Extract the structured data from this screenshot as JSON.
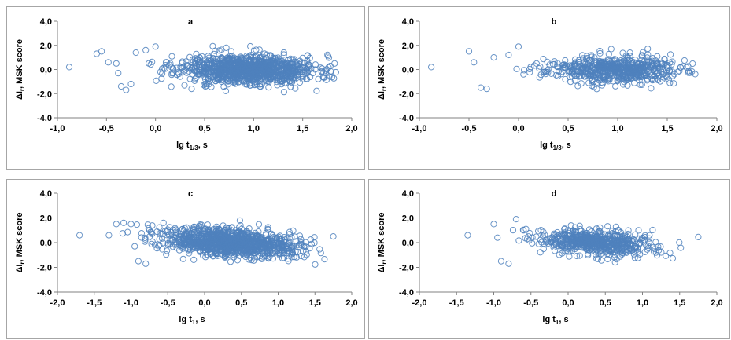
{
  "chart_data": [
    {
      "panel": "a",
      "type": "scatter",
      "title": "a",
      "ylabel": "ΔI",
      "ylabel_sub": "r",
      "ylabel_rest": ", MSK score",
      "xlabel": "lg t",
      "xlabel_sub": "1/3",
      "xlabel_rest": ", s",
      "xlim": [
        -1.0,
        2.0
      ],
      "ylim": [
        -4.0,
        4.0
      ],
      "xticks": [
        "-1,0",
        "-0,5",
        "0,0",
        "0,5",
        "1,0",
        "1,5",
        "2,0"
      ],
      "yticks": [
        "4,0",
        "2,0",
        "0,0",
        "-2,0",
        "-4,0"
      ],
      "marker_color": "#4f81bd",
      "seed": 11,
      "n": 1100,
      "xmean": 0.95,
      "xsd": 0.35,
      "xmin": -0.88,
      "xmax": 1.85,
      "ysd": 0.6,
      "slope": -0.1,
      "sparse": [
        [
          -0.88,
          0.2
        ],
        [
          -0.6,
          1.3
        ],
        [
          -0.55,
          1.5
        ],
        [
          -0.48,
          0.6
        ],
        [
          -0.4,
          0.5
        ],
        [
          -0.38,
          -0.3
        ],
        [
          -0.35,
          -1.4
        ],
        [
          -0.3,
          -1.7
        ],
        [
          -0.25,
          -1.2
        ],
        [
          -0.2,
          1.4
        ],
        [
          -0.1,
          1.6
        ],
        [
          0.0,
          1.9
        ],
        [
          0.05,
          -0.2
        ]
      ]
    },
    {
      "panel": "b",
      "type": "scatter",
      "title": "b",
      "ylabel": "ΔI",
      "ylabel_sub": "r",
      "ylabel_rest": ", MSK score",
      "xlabel": "lg t",
      "xlabel_sub": "1/3",
      "xlabel_rest": ", s",
      "xlim": [
        -1.0,
        2.0
      ],
      "ylim": [
        -4.0,
        4.0
      ],
      "xticks": [
        "-1,0",
        "-0,5",
        "0,0",
        "0,5",
        "1,0",
        "1,5",
        "2,0"
      ],
      "yticks": [
        "4,0",
        "2,0",
        "0,0",
        "-2,0",
        "-4,0"
      ],
      "marker_color": "#4f81bd",
      "seed": 23,
      "n": 620,
      "xmean": 0.95,
      "xsd": 0.33,
      "xmin": -0.88,
      "xmax": 1.8,
      "ysd": 0.55,
      "slope": -0.1,
      "sparse": [
        [
          -0.88,
          0.2
        ],
        [
          -0.5,
          1.5
        ],
        [
          -0.45,
          0.6
        ],
        [
          -0.38,
          -1.5
        ],
        [
          -0.32,
          -1.6
        ],
        [
          -0.25,
          1.0
        ],
        [
          -0.1,
          1.2
        ],
        [
          0.0,
          1.9
        ],
        [
          0.05,
          -0.4
        ]
      ]
    },
    {
      "panel": "c",
      "type": "scatter",
      "title": "c",
      "ylabel": "ΔI",
      "ylabel_sub": "r",
      "ylabel_rest": ", MSK score",
      "xlabel": "lg t",
      "xlabel_sub": "1",
      "xlabel_rest": ", s",
      "xlim": [
        -2.0,
        2.0
      ],
      "ylim": [
        -4.0,
        4.0
      ],
      "xticks": [
        "-2,0",
        "-1,5",
        "-1,0",
        "-0,5",
        "0,0",
        "0,5",
        "1,0",
        "1,5",
        "2,0"
      ],
      "yticks": [
        "4,0",
        "2,0",
        "0,0",
        "-2,0",
        "-4,0"
      ],
      "marker_color": "#4f81bd",
      "seed": 37,
      "n": 1100,
      "xmean": 0.35,
      "xsd": 0.45,
      "xmin": -1.7,
      "xmax": 1.75,
      "ysd": 0.55,
      "slope": -0.45,
      "sparse": [
        [
          -1.7,
          0.6
        ],
        [
          -1.3,
          0.6
        ],
        [
          -1.2,
          1.5
        ],
        [
          -1.1,
          1.6
        ],
        [
          -1.0,
          1.5
        ],
        [
          -0.95,
          -0.3
        ],
        [
          -0.9,
          -1.5
        ],
        [
          -0.8,
          -1.7
        ],
        [
          -0.75,
          1.0
        ],
        [
          1.75,
          0.5
        ]
      ]
    },
    {
      "panel": "d",
      "type": "scatter",
      "title": "d",
      "ylabel": "ΔI",
      "ylabel_sub": "r",
      "ylabel_rest": ", MSK score",
      "xlabel": "lg t",
      "xlabel_sub": "1",
      "xlabel_rest": ", s",
      "xlim": [
        -2.0,
        2.0
      ],
      "ylim": [
        -4.0,
        4.0
      ],
      "xticks": [
        "-2,0",
        "-1,5",
        "-1,0",
        "-0,5",
        "0,0",
        "0,5",
        "1,0",
        "1,5",
        "2,0"
      ],
      "yticks": [
        "4,0",
        "2,0",
        "0,0",
        "-2,0",
        "-4,0"
      ],
      "marker_color": "#4f81bd",
      "seed": 53,
      "n": 620,
      "xmean": 0.4,
      "xsd": 0.4,
      "xmin": -1.35,
      "xmax": 1.75,
      "ysd": 0.5,
      "slope": -0.4,
      "sparse": [
        [
          -1.35,
          0.6
        ],
        [
          -1.0,
          1.5
        ],
        [
          -0.95,
          0.4
        ],
        [
          -0.9,
          -1.5
        ],
        [
          -0.8,
          -1.7
        ],
        [
          -0.7,
          1.9
        ],
        [
          -0.6,
          1.0
        ],
        [
          1.75,
          0.45
        ]
      ]
    }
  ]
}
